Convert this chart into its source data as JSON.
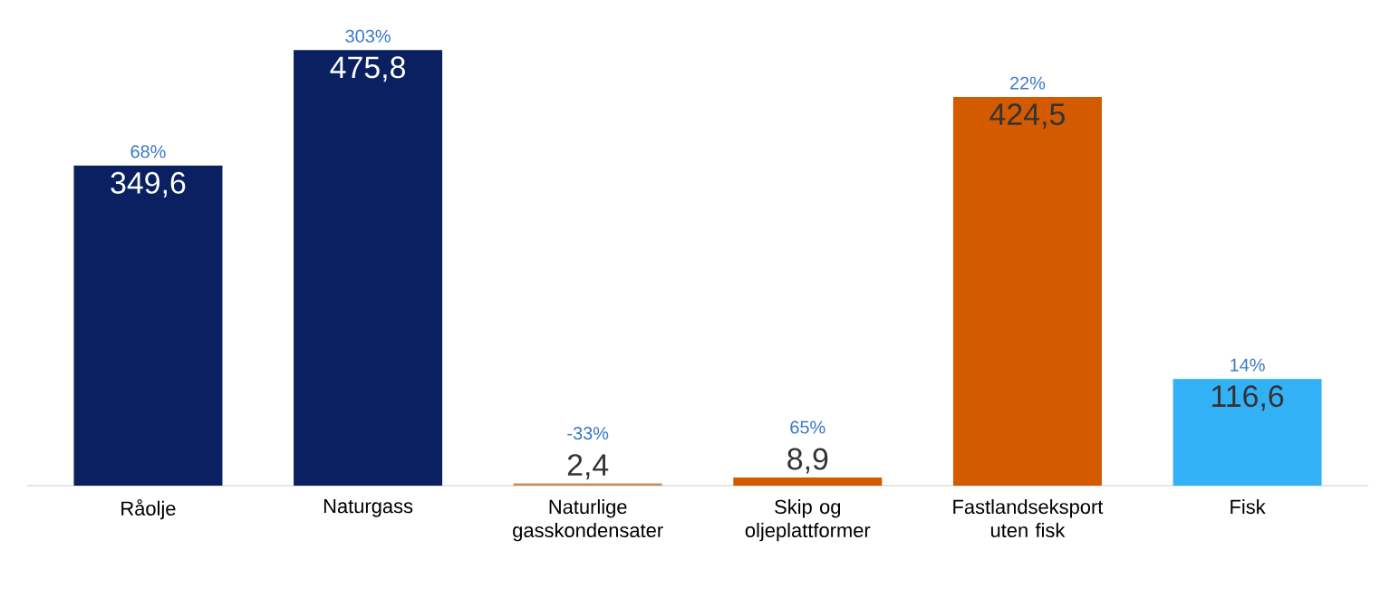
{
  "chart_data": {
    "type": "bar",
    "categories": [
      "Råolje",
      "Naturgass",
      "Naturlige gasskondensater",
      "Skip og oljeplattformer",
      "Fastlandseksport uten fisk",
      "Fisk"
    ],
    "values": [
      349.6,
      475.8,
      2.4,
      8.9,
      424.5,
      116.6
    ],
    "colors": [
      "#0a2060",
      "#0a2060",
      "#c98c5a",
      "#d45a00",
      "#d45a00",
      "#33b1f7"
    ],
    "value_labels": [
      "349,6",
      "475,8",
      "2,4",
      "8,9",
      "424,5",
      "116,6"
    ],
    "annotations": [
      {
        "text": "68%",
        "x": "Råolje",
        "y": 349.6
      },
      {
        "text": "303%",
        "x": "Naturgass",
        "y": 475.8
      },
      {
        "text": "-33%",
        "x": "Naturlige gasskondensater",
        "y": 2.4
      },
      {
        "text": "65%",
        "x": "Skip og oljeplattformer",
        "y": 8.9
      },
      {
        "text": "22%",
        "x": "Fastlandseksport uten fisk",
        "y": 424.5
      },
      {
        "text": "14%",
        "x": "Fisk",
        "y": 116.6
      }
    ]
  }
}
